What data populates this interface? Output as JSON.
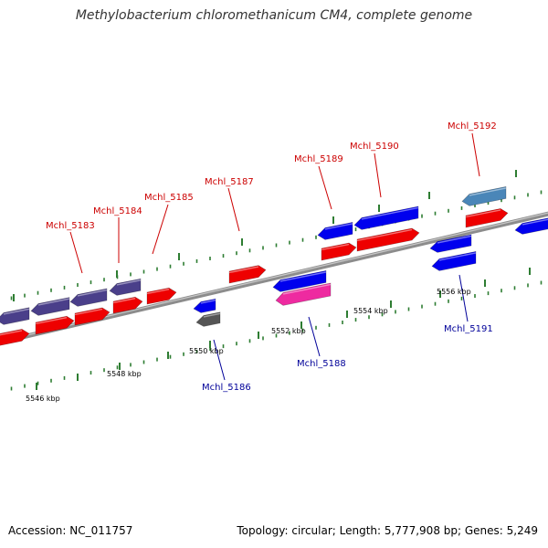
{
  "title": "Methylobacterium chloromethanicum CM4, complete genome",
  "footer": {
    "accession": "Accession: NC_011757",
    "stats": "Topology: circular; Length: 5,777,908 bp; Genes: 5,249"
  },
  "colors": {
    "forward_label": "#cc0000",
    "reverse_label": "#000099",
    "backbone": "#8c8c8c",
    "tick": "#2e7d32",
    "gene_red": "#ee0000",
    "gene_blue": "#0000ee",
    "gene_purple": "#4a3f8a",
    "gene_pink": "#ee2aa0",
    "gene_gray": "#555555",
    "gene_steel": "#4a86b8"
  },
  "scale_labels": [
    {
      "id": "5546",
      "text": "5546 kbp"
    },
    {
      "id": "5548",
      "text": "5548 kbp"
    },
    {
      "id": "5550",
      "text": "5550 kbp"
    },
    {
      "id": "5552",
      "text": "5552 kbp"
    },
    {
      "id": "5554",
      "text": "5554 kbp"
    },
    {
      "id": "5556",
      "text": "5556 kbp"
    }
  ],
  "gene_labels": [
    {
      "id": "Mchl_5183",
      "text": "Mchl_5183",
      "strand": "forward"
    },
    {
      "id": "Mchl_5184",
      "text": "Mchl_5184",
      "strand": "forward"
    },
    {
      "id": "Mchl_5185",
      "text": "Mchl_5185",
      "strand": "forward"
    },
    {
      "id": "Mchl_5187",
      "text": "Mchl_5187",
      "strand": "forward"
    },
    {
      "id": "Mchl_5189",
      "text": "Mchl_5189",
      "strand": "forward"
    },
    {
      "id": "Mchl_5190",
      "text": "Mchl_5190",
      "strand": "forward"
    },
    {
      "id": "Mchl_5192",
      "text": "Mchl_5192",
      "strand": "forward"
    },
    {
      "id": "Mchl_5186",
      "text": "Mchl_5186",
      "strand": "reverse"
    },
    {
      "id": "Mchl_5188",
      "text": "Mchl_5188",
      "strand": "reverse"
    },
    {
      "id": "Mchl_5191",
      "text": "Mchl_5191",
      "strand": "reverse"
    }
  ]
}
